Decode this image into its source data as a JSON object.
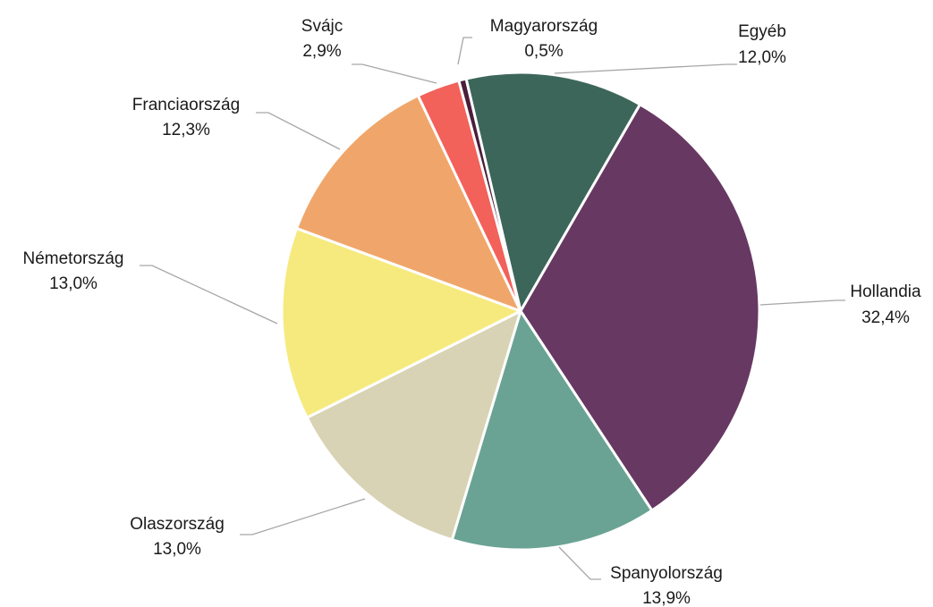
{
  "chart_data": {
    "type": "pie",
    "categories": [
      "Egyéb",
      "Hollandia",
      "Spanyolország",
      "Olaszország",
      "Németország",
      "Franciaország",
      "Svájc",
      "Magyarország"
    ],
    "values": [
      12.0,
      32.4,
      13.9,
      13.0,
      13.0,
      12.3,
      2.9,
      0.5
    ],
    "value_labels": [
      "12,0%",
      "32,4%",
      "13,9%",
      "13,0%",
      "13,0%",
      "12,3%",
      "2,9%",
      "0,5%"
    ],
    "colors": [
      "#3d665a",
      "#673862",
      "#6aa393",
      "#d8d3b5",
      "#f6ea7e",
      "#f0a66a",
      "#f2615a",
      "#4a1e3a"
    ]
  }
}
